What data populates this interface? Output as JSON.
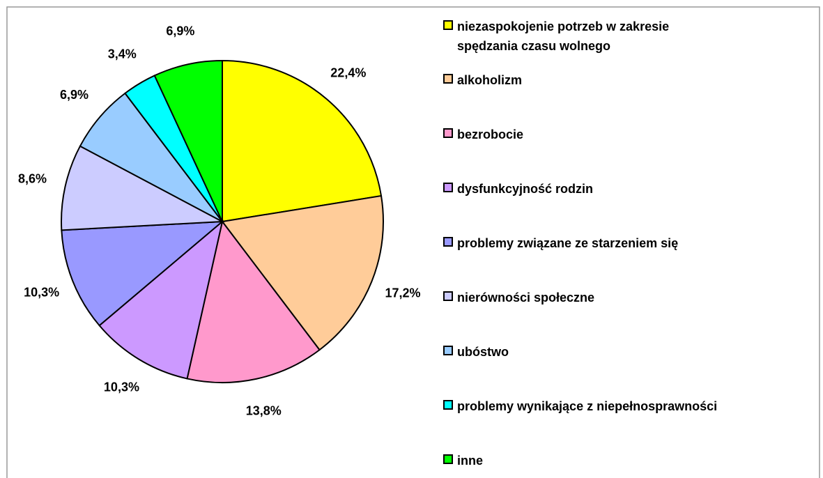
{
  "chart_data": {
    "type": "pie",
    "categories": [
      "niezaspokojenie potrzeb w zakresie\nspędzania czasu wolnego",
      "alkoholizm",
      "bezrobocie",
      "dysfunkcyjność rodzin",
      "problemy związane ze starzeniem się",
      "nierówności społeczne",
      "ubóstwo",
      "problemy wynikające z niepełnosprawności",
      "inne"
    ],
    "values": [
      22.4,
      17.2,
      13.8,
      10.3,
      10.3,
      8.6,
      6.9,
      3.4,
      6.9
    ],
    "value_labels": [
      "22,4%",
      "17,2%",
      "13,8%",
      "10,3%",
      "10,3%",
      "8,6%",
      "6,9%",
      "3,4%",
      "6,9%"
    ],
    "colors": [
      "#ffff00",
      "#ffcc99",
      "#ff99cc",
      "#cc99ff",
      "#9999ff",
      "#ccccff",
      "#99ccff",
      "#00ffff",
      "#00ff00"
    ],
    "legend": "right"
  }
}
